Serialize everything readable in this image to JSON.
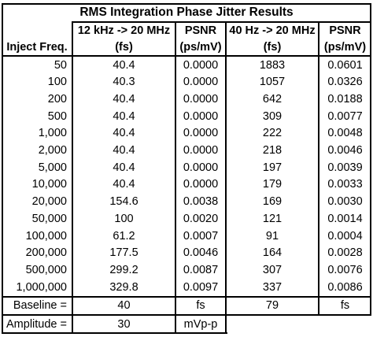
{
  "title": "RMS Integration Phase Jitter Results",
  "header": {
    "inject_label": "Inject Freq.",
    "range_1": "12 kHz -> 20 MHz",
    "range_1_unit": "(fs)",
    "psnr_1": "PSNR",
    "psnr_1_unit": "(ps/mV)",
    "range_2": "40 Hz -> 20 MHz",
    "range_2_unit": "(fs)",
    "psnr_2": "PSNR",
    "psnr_2_unit": "(ps/mV)"
  },
  "rows": [
    {
      "freq": "50",
      "j1": "40.4",
      "p1": "0.0000",
      "j2": "1883",
      "p2": "0.0601"
    },
    {
      "freq": "100",
      "j1": "40.3",
      "p1": "0.0000",
      "j2": "1057",
      "p2": "0.0326"
    },
    {
      "freq": "200",
      "j1": "40.4",
      "p1": "0.0000",
      "j2": "642",
      "p2": "0.0188"
    },
    {
      "freq": "500",
      "j1": "40.4",
      "p1": "0.0000",
      "j2": "309",
      "p2": "0.0077"
    },
    {
      "freq": "1,000",
      "j1": "40.4",
      "p1": "0.0000",
      "j2": "222",
      "p2": "0.0048"
    },
    {
      "freq": "2,000",
      "j1": "40.4",
      "p1": "0.0000",
      "j2": "218",
      "p2": "0.0046"
    },
    {
      "freq": "5,000",
      "j1": "40.4",
      "p1": "0.0000",
      "j2": "197",
      "p2": "0.0039"
    },
    {
      "freq": "10,000",
      "j1": "40.4",
      "p1": "0.0000",
      "j2": "179",
      "p2": "0.0033"
    },
    {
      "freq": "20,000",
      "j1": "154.6",
      "p1": "0.0038",
      "j2": "169",
      "p2": "0.0030"
    },
    {
      "freq": "50,000",
      "j1": "100",
      "p1": "0.0020",
      "j2": "121",
      "p2": "0.0014"
    },
    {
      "freq": "100,000",
      "j1": "61.2",
      "p1": "0.0007",
      "j2": "91",
      "p2": "0.0004"
    },
    {
      "freq": "200,000",
      "j1": "177.5",
      "p1": "0.0046",
      "j2": "164",
      "p2": "0.0028"
    },
    {
      "freq": "500,000",
      "j1": "299.2",
      "p1": "0.0087",
      "j2": "307",
      "p2": "0.0076"
    },
    {
      "freq": "1,000,000",
      "j1": "329.8",
      "p1": "0.0097",
      "j2": "337",
      "p2": "0.0086"
    }
  ],
  "baseline": {
    "label": "Baseline =",
    "value_1": "40",
    "unit_1": "fs",
    "value_2": "79",
    "unit_2": "fs"
  },
  "amplitude": {
    "label": "Amplitude =",
    "value": "30",
    "unit": "mVp-p"
  }
}
